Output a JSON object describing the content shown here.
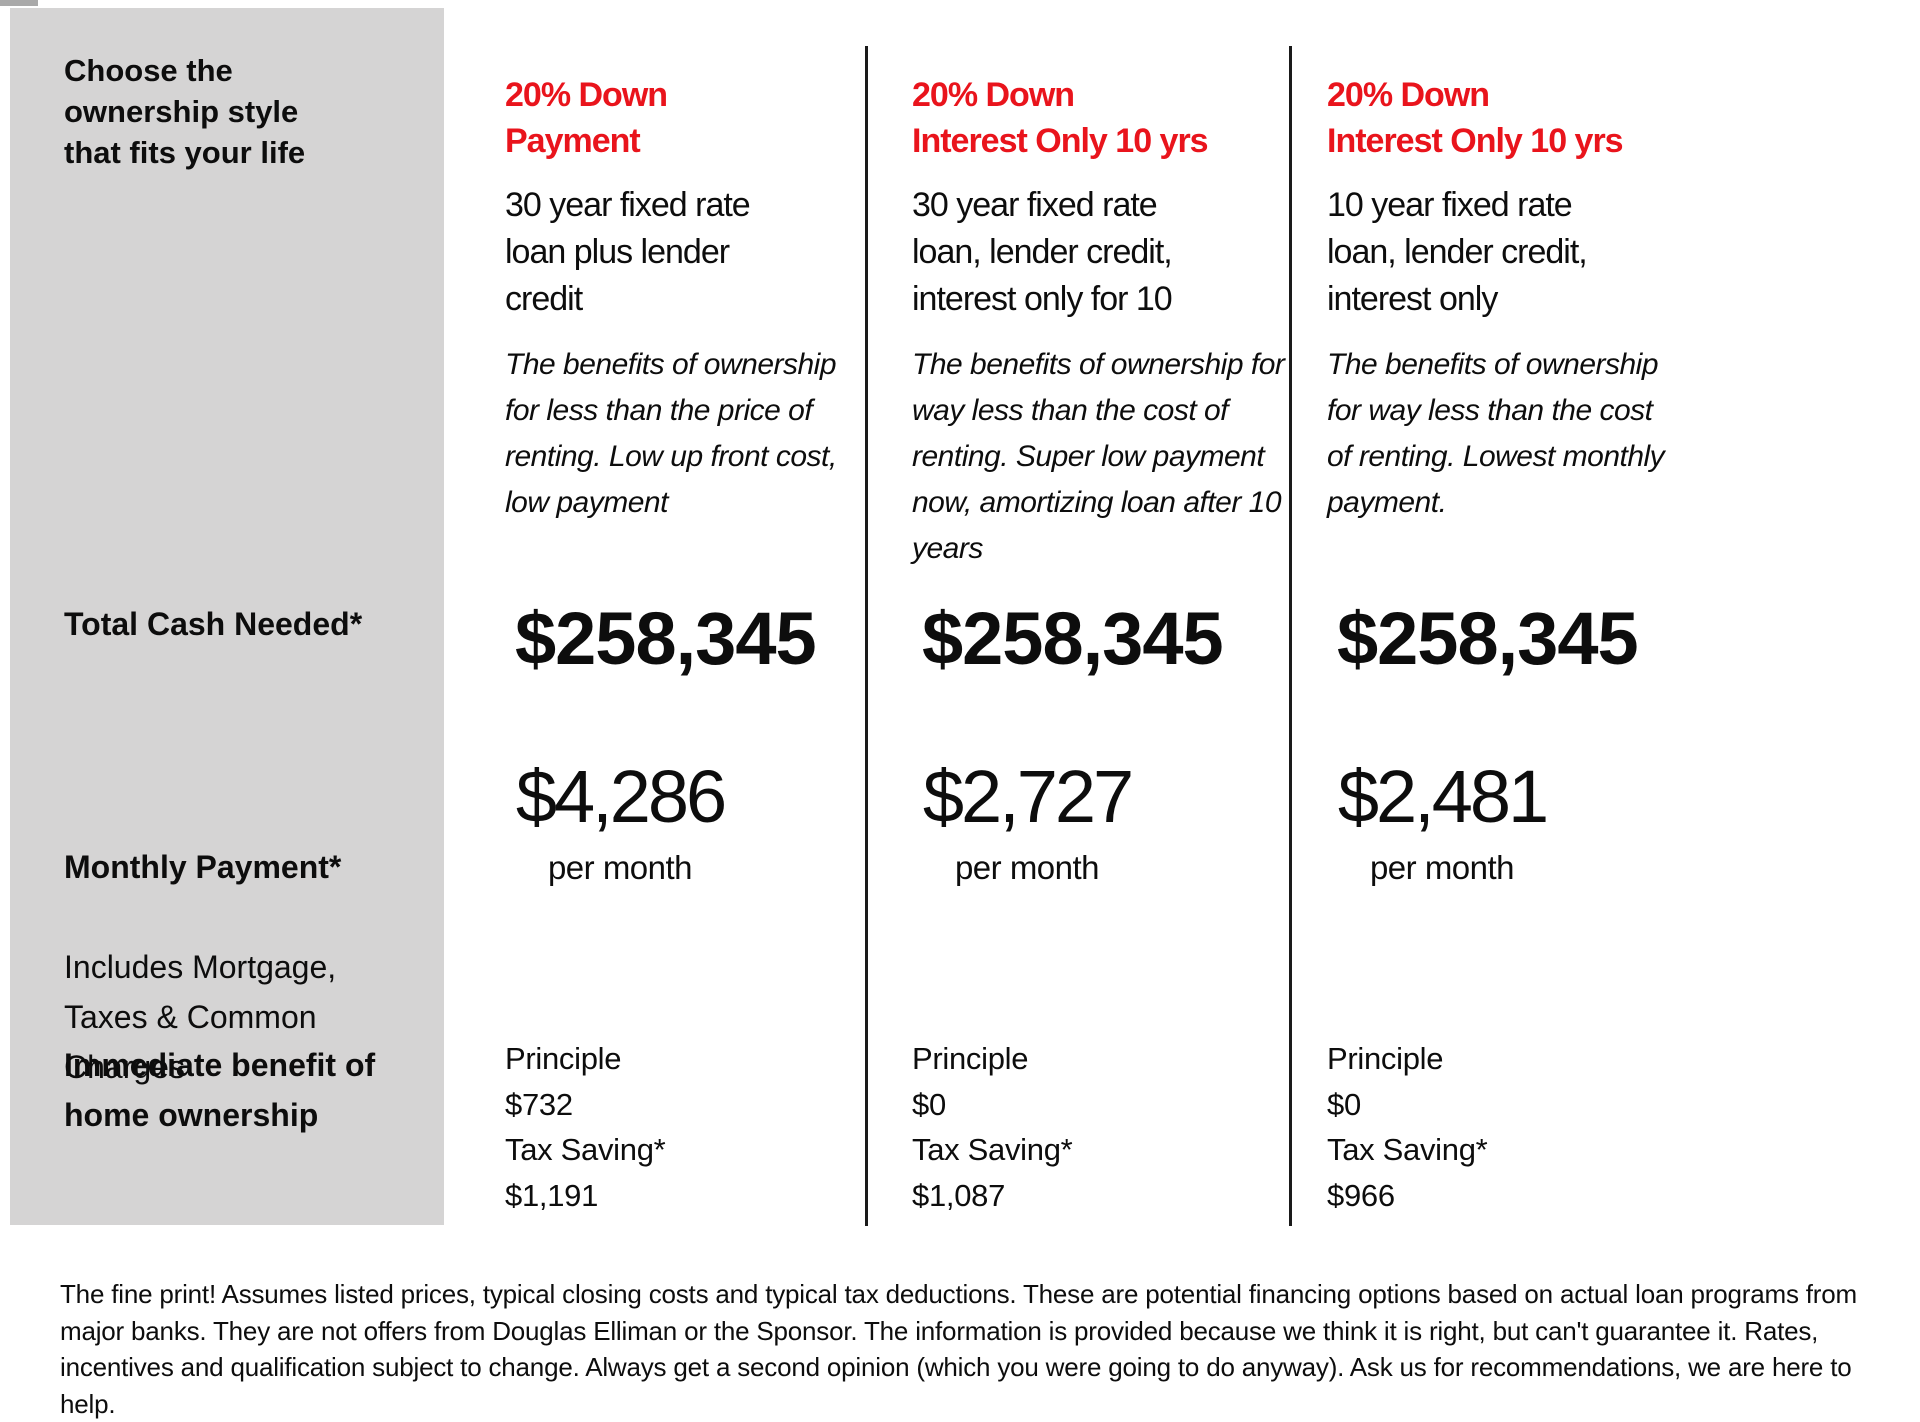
{
  "page": {
    "colors": {
      "accent_red": "#e9141c",
      "sidebar_gray": "#d5d4d4",
      "text_black": "#0d0d0d",
      "background": "#ffffff"
    }
  },
  "sidebar": {
    "intro": "Choose the\nownership style\nthat fits your life",
    "total_cash_label": "Total Cash Needed*",
    "monthly_payment_label": "Monthly Payment*",
    "monthly_payment_sublabel": "Includes Mortgage,\nTaxes & Common\nCharges",
    "benefit_label": "Immediate benefit of\nhome ownership"
  },
  "columns": [
    {
      "header": "20% Down\nPayment",
      "subhead": "30 year fixed rate\nloan plus lender\ncredit",
      "description": "The benefits of ownership\nfor less than the price of\nrenting. Low up front cost,\nlow payment",
      "total_cash": "$258,345",
      "monthly_payment": "$4,286",
      "per_month_label": "per month",
      "principle_label": "Principle",
      "principle_value": "$732",
      "tax_saving_label": "Tax Saving*",
      "tax_saving_value": "$1,191"
    },
    {
      "header": "20% Down\nInterest Only 10 yrs",
      "subhead": "30 year fixed rate\nloan, lender credit,\ninterest only for 10",
      "description": "The benefits of ownership for\nway less than the cost of\nrenting. Super low payment\nnow, amortizing loan after 10\nyears",
      "total_cash": "$258,345",
      "monthly_payment": "$2,727",
      "per_month_label": "per month",
      "principle_label": "Principle",
      "principle_value": "$0",
      "tax_saving_label": "Tax Saving*",
      "tax_saving_value": "$1,087"
    },
    {
      "header": "20% Down\nInterest Only 10 yrs",
      "subhead": "10 year fixed rate\nloan, lender credit,\ninterest only",
      "description": "The benefits of ownership\nfor way less than the cost\nof renting. Lowest monthly\npayment.",
      "total_cash": "$258,345",
      "monthly_payment": "$2,481",
      "per_month_label": "per month",
      "principle_label": "Principle",
      "principle_value": "$0",
      "tax_saving_label": "Tax Saving*",
      "tax_saving_value": "$966"
    }
  ],
  "fine_print": "The fine print! Assumes listed prices, typical closing costs and typical tax deductions. These are potential financing options based on actual loan programs from major banks. They are not offers from Douglas Elliman or the Sponsor. The information is provided because we think it is right, but can't guarantee it. Rates, incentives and qualification subject to change. Always get a second opinion (which you were going to do anyway). Ask us for recommendations, we are here to help."
}
